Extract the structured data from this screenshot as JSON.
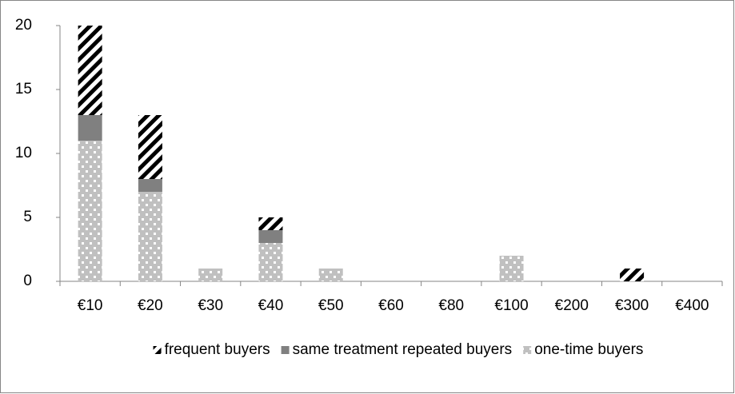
{
  "chart_data": {
    "type": "stacked-bar",
    "categories": [
      "€10",
      "€20",
      "€30",
      "€40",
      "€50",
      "€60",
      "€80",
      "€100",
      "€200",
      "€300",
      "€400"
    ],
    "series": [
      {
        "name": "one-time buyers",
        "color": "#c0c0c0",
        "pattern": "dots",
        "values": [
          11,
          7,
          1,
          3,
          1,
          0,
          0,
          2,
          0,
          0,
          0
        ]
      },
      {
        "name": "same treatment repeated buyers",
        "color": "#808080",
        "pattern": "solid",
        "values": [
          2,
          1,
          0,
          1,
          0,
          0,
          0,
          0,
          0,
          0,
          0
        ]
      },
      {
        "name": "frequent buyers",
        "color": "#000000",
        "pattern": "stripes",
        "values": [
          7,
          5,
          0,
          1,
          0,
          0,
          0,
          0,
          0,
          1,
          0
        ]
      }
    ],
    "legend_order": "reversed",
    "ylim": [
      0,
      20
    ],
    "yticks": [
      0,
      5,
      10,
      15,
      20
    ],
    "grid": false
  }
}
